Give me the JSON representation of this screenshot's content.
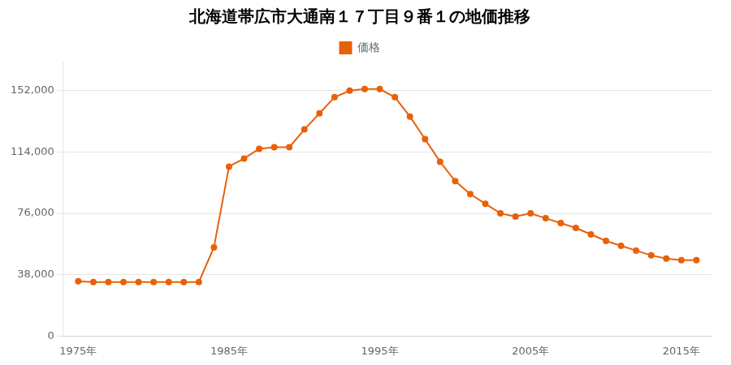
{
  "chart_data": {
    "type": "line",
    "title": "北海道帯広市大通南１７丁目９番１の地価推移",
    "x": [
      1975,
      1976,
      1977,
      1978,
      1979,
      1980,
      1981,
      1982,
      1983,
      1984,
      1985,
      1986,
      1987,
      1988,
      1989,
      1990,
      1991,
      1992,
      1993,
      1994,
      1995,
      1996,
      1997,
      1998,
      1999,
      2000,
      2001,
      2002,
      2003,
      2004,
      2005,
      2006,
      2007,
      2008,
      2009,
      2010,
      2011,
      2012,
      2013,
      2014,
      2015,
      2016
    ],
    "series": [
      {
        "name": "価格",
        "color": "#E8610A",
        "marker": "circle",
        "values": [
          34000,
          33500,
          33500,
          33500,
          33500,
          33500,
          33500,
          33500,
          33500,
          55000,
          105000,
          110000,
          116000,
          117000,
          117000,
          128000,
          138000,
          148000,
          152000,
          153000,
          153000,
          148000,
          136000,
          122000,
          108000,
          96000,
          88000,
          82000,
          76000,
          74000,
          76000,
          73000,
          70000,
          67000,
          63000,
          59000,
          56000,
          53000,
          50000,
          48000,
          47000,
          47000
        ]
      }
    ],
    "xlim": [
      1974,
      2017
    ],
    "xticks": [
      {
        "value": 1975,
        "label": "1975年"
      },
      {
        "value": 1985,
        "label": "1985年"
      },
      {
        "value": 1995,
        "label": "1995年"
      },
      {
        "value": 2005,
        "label": "2005年"
      },
      {
        "value": 2015,
        "label": "2015年"
      }
    ],
    "ylim": [
      0,
      170000
    ],
    "yticks": [
      0,
      {
        "value": 38000,
        "label": "38,000"
      },
      {
        "value": 76000,
        "label": "76,000"
      },
      {
        "value": 114000,
        "label": "114,000"
      },
      {
        "value": 152000,
        "label": "152,000"
      }
    ],
    "grid": "y",
    "legend": "top"
  }
}
